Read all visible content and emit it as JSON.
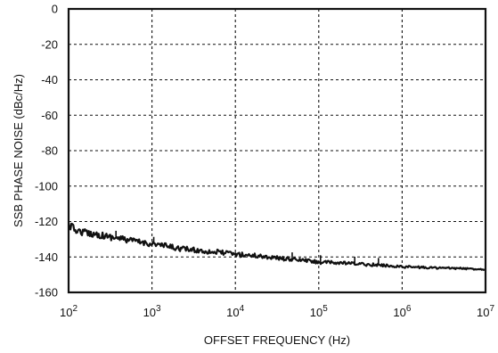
{
  "chart_data": {
    "type": "line",
    "xlabel": "OFFSET FREQUENCY (Hz)",
    "ylabel": "SSB PHASE NOISE (dBc/Hz)",
    "x_scale": "log",
    "xlim": [
      100,
      10000000
    ],
    "ylim": [
      -160,
      0
    ],
    "grid": true,
    "x_ticks": [
      {
        "base": "10",
        "exp": "2",
        "value": 100
      },
      {
        "base": "10",
        "exp": "3",
        "value": 1000
      },
      {
        "base": "10",
        "exp": "4",
        "value": 10000
      },
      {
        "base": "10",
        "exp": "5",
        "value": 100000
      },
      {
        "base": "10",
        "exp": "6",
        "value": 1000000
      },
      {
        "base": "10",
        "exp": "7",
        "value": 10000000
      }
    ],
    "y_ticks": [
      {
        "label": "0",
        "value": 0
      },
      {
        "label": "-20",
        "value": -20
      },
      {
        "label": "-40",
        "value": -40
      },
      {
        "label": "-60",
        "value": -60
      },
      {
        "label": "-80",
        "value": -80
      },
      {
        "label": "-100",
        "value": -100
      },
      {
        "label": "-120",
        "value": -120
      },
      {
        "label": "-140",
        "value": -140
      },
      {
        "label": "-160",
        "value": -160
      }
    ],
    "series": [
      {
        "points": [
          [
            100,
            -122
          ],
          [
            130,
            -125.5
          ],
          [
            200,
            -127
          ],
          [
            300,
            -128.5
          ],
          [
            400,
            -129.5
          ],
          [
            600,
            -131
          ],
          [
            800,
            -132
          ],
          [
            1000,
            -132.5
          ],
          [
            1500,
            -134
          ],
          [
            2000,
            -135
          ],
          [
            3000,
            -136
          ],
          [
            5000,
            -137
          ],
          [
            7000,
            -137.5
          ],
          [
            10000,
            -138.5
          ],
          [
            20000,
            -139.5
          ],
          [
            30000,
            -140.5
          ],
          [
            50000,
            -141.5
          ],
          [
            70000,
            -142
          ],
          [
            100000,
            -143
          ],
          [
            200000,
            -143.5
          ],
          [
            300000,
            -144
          ],
          [
            500000,
            -144.5
          ],
          [
            1000000,
            -145.5
          ],
          [
            2000000,
            -146
          ],
          [
            5000000,
            -146.5
          ],
          [
            10000000,
            -147
          ]
        ]
      }
    ]
  }
}
